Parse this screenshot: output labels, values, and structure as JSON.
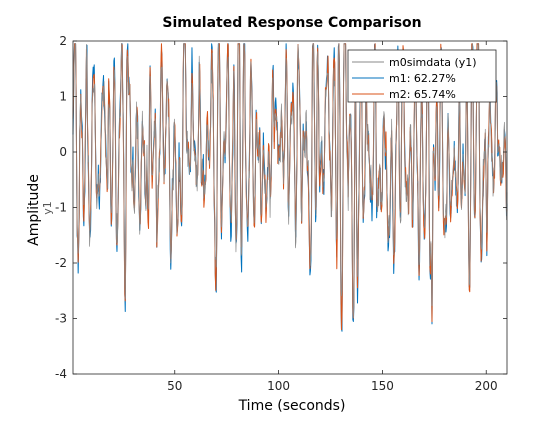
{
  "figure": {
    "title": "Simulated Response Comparison"
  },
  "chart_data": {
    "type": "line",
    "title": "Simulated Response Comparison",
    "xlabel": "Time (seconds)",
    "ylabel": "Amplitude",
    "channel_label": "y1",
    "xlim": [
      1,
      210
    ],
    "ylim": [
      -4,
      2
    ],
    "xticks": [
      50,
      100,
      150,
      200
    ],
    "yticks": [
      -4,
      -3,
      -2,
      -1,
      0,
      1,
      2
    ],
    "grid": false,
    "legend_position": "top-right",
    "legend": [
      "m0simdata (y1)",
      "m1: 62.27%",
      "m2: 65.74%"
    ],
    "colors": {
      "data": "#8a8a8a",
      "m1": "#0072bd",
      "m2": "#d95319"
    },
    "key_points": [
      {
        "x": 136,
        "y": -3.25,
        "series": "m1"
      },
      {
        "x": 136,
        "y": -3.05,
        "series": "m2"
      },
      {
        "x": 38,
        "y": 1.55,
        "series": "m0simdata (y1)"
      },
      {
        "x": 172,
        "y": 1.6,
        "series": "m0simdata (y1)"
      },
      {
        "x": 174,
        "y": -3.05,
        "series": "m2"
      }
    ],
    "series": [
      {
        "name": "m0simdata (y1)",
        "style": "thin-gray"
      },
      {
        "name": "m1: 62.27%",
        "style": "blue"
      },
      {
        "name": "m2: 65.74%",
        "style": "orange"
      }
    ]
  }
}
